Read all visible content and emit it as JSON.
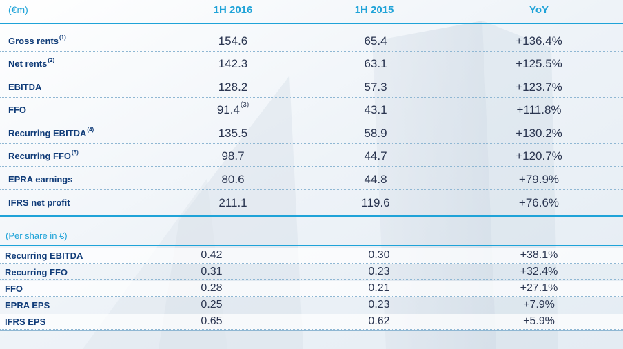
{
  "header": {
    "label": "(€m)",
    "col1": "1H 2016",
    "col2": "1H 2015",
    "col3": "YoY"
  },
  "table1": {
    "rows": [
      {
        "label": "Gross rents",
        "note": "(1)",
        "v1": "154.6",
        "v1_note": "",
        "v2": "65.4",
        "v3": "+136.4%"
      },
      {
        "label": "Net rents",
        "note": "(2)",
        "v1": "142.3",
        "v1_note": "",
        "v2": "63.1",
        "v3": "+125.5%"
      },
      {
        "label": "EBITDA",
        "note": "",
        "v1": "128.2",
        "v1_note": "",
        "v2": "57.3",
        "v3": "+123.7%"
      },
      {
        "label": "FFO",
        "note": "",
        "v1": "91.4",
        "v1_note": "(3)",
        "v2": "43.1",
        "v3": "+111.8%"
      },
      {
        "label": "Recurring EBITDA",
        "note": "(4)",
        "v1": "135.5",
        "v1_note": "",
        "v2": "58.9",
        "v3": "+130.2%"
      },
      {
        "label": "Recurring FFO",
        "note": "(5)",
        "v1": "98.7",
        "v1_note": "",
        "v2": "44.7",
        "v3": "+120.7%"
      },
      {
        "label": "EPRA earnings",
        "note": "",
        "v1": "80.6",
        "v1_note": "",
        "v2": "44.8",
        "v3": "+79.9%"
      },
      {
        "label": "IFRS net profit",
        "note": "",
        "v1": "211.1",
        "v1_note": "",
        "v2": "119.6",
        "v3": "+76.6%"
      }
    ]
  },
  "table2": {
    "title": "(Per share in €)",
    "rows": [
      {
        "label": "Recurring EBITDA",
        "v1": "0.42",
        "v2": "0.30",
        "v3": "+38.1%"
      },
      {
        "label": "Recurring FFO",
        "v1": "0.31",
        "v2": "0.23",
        "v3": "+32.4%"
      },
      {
        "label": "FFO",
        "v1": "0.28",
        "v2": "0.21",
        "v3": "+27.1%"
      },
      {
        "label": "EPRA EPS",
        "v1": "0.25",
        "v2": "0.23",
        "v3": "+7.9%"
      },
      {
        "label": "IFRS EPS",
        "v1": "0.65",
        "v2": "0.62",
        "v3": "+5.9%"
      }
    ]
  }
}
